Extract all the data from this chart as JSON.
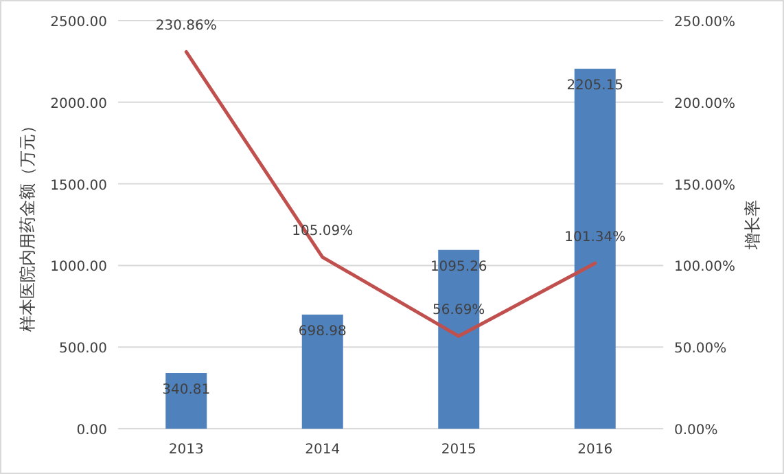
{
  "chart_data": {
    "type": "bar",
    "ylabel": "样本医院内用药金额（万元）",
    "y2label": "增长率",
    "categories": [
      "2013",
      "2014",
      "2015",
      "2016"
    ],
    "series": [
      {
        "color": "#4f81bd",
        "values": [
          340.81,
          698.98,
          1095.26,
          2205.15
        ],
        "value_labels": [
          "340.81",
          "698.98",
          "1095.26",
          "2205.15"
        ]
      },
      {
        "type": "line",
        "axis": "y2",
        "color": "#c0504d",
        "values": [
          230.86,
          105.09,
          56.69,
          101.34
        ],
        "value_labels": [
          "230.86%",
          "105.09%",
          "56.69%",
          "101.34%"
        ]
      }
    ],
    "ylim": [
      0,
      2500
    ],
    "yticks": [
      {
        "value": 0,
        "label": "0.00"
      },
      {
        "value": 500,
        "label": "500.00"
      },
      {
        "value": 1000,
        "label": "1000.00"
      },
      {
        "value": 1500,
        "label": "1500.00"
      },
      {
        "value": 2000,
        "label": "2000.00"
      },
      {
        "value": 2500,
        "label": "2500.00"
      }
    ],
    "y2lim": [
      0,
      250
    ],
    "y2ticks": [
      {
        "value": 0,
        "label": "0.00%"
      },
      {
        "value": 50,
        "label": "50.00%"
      },
      {
        "value": 100,
        "label": "100.00%"
      },
      {
        "value": 150,
        "label": "150.00%"
      },
      {
        "value": 200,
        "label": "200.00%"
      },
      {
        "value": 250,
        "label": "250.00%"
      }
    ],
    "grid": "y"
  }
}
